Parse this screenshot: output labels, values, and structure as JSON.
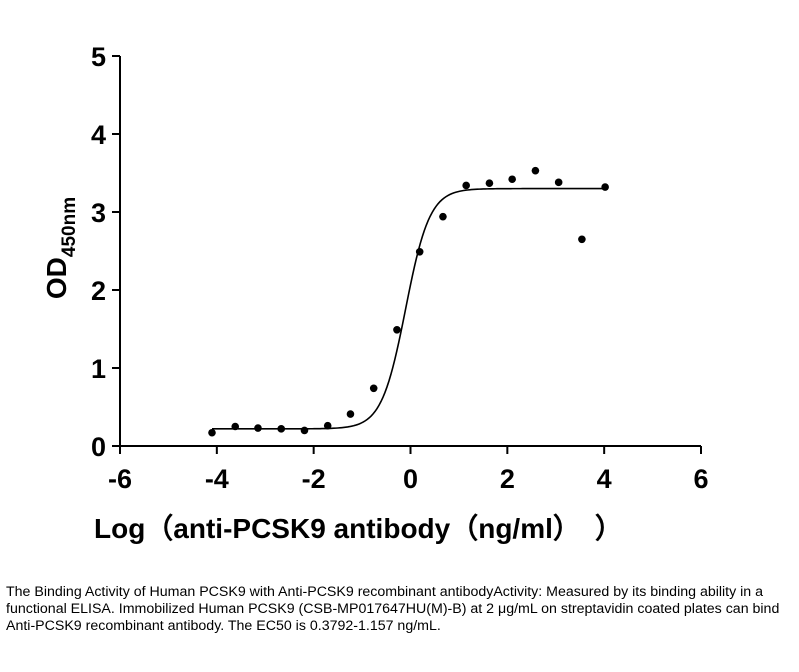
{
  "chart_data": {
    "type": "scatter",
    "title": "",
    "xlabel": "Log（anti-PCSK9 antibody（ng/ml）　）",
    "ylabel_main": "OD",
    "ylabel_sub": "450nm",
    "xlim": [
      -6,
      6
    ],
    "ylim": [
      0,
      5
    ],
    "xticks": [
      -6,
      -4,
      -2,
      0,
      2,
      4,
      6
    ],
    "xtick_labels": [
      "-6",
      "-4",
      "-2",
      "0",
      "2",
      "4",
      "6"
    ],
    "yticks": [
      0,
      1,
      2,
      3,
      4,
      5
    ],
    "ytick_labels": [
      "0",
      "1",
      "2",
      "3",
      "4",
      "5"
    ],
    "grid": false,
    "points": {
      "x": [
        -4.1,
        -3.62,
        -3.15,
        -2.67,
        -2.19,
        -1.71,
        -1.24,
        -0.76,
        -0.28,
        0.19,
        0.67,
        1.15,
        1.63,
        2.1,
        2.58,
        3.06,
        3.54,
        4.02
      ],
      "y": [
        0.17,
        0.25,
        0.23,
        0.22,
        0.2,
        0.26,
        0.41,
        0.74,
        1.49,
        2.49,
        2.94,
        3.34,
        3.37,
        3.42,
        3.53,
        3.38,
        2.65,
        3.32
      ]
    },
    "fit": {
      "model": "4PL",
      "bottom": 0.22,
      "top": 3.3,
      "log_ec50": -0.1,
      "hill_slope": 1.75,
      "x_range": [
        -4.1,
        4.02
      ]
    }
  },
  "caption": "The Binding Activity of Human PCSK9 with Anti-PCSK9 recombinant antibodyActivity: Measured by its binding ability in a functional ELISA. Immobilized Human PCSK9 (CSB-MP017647HU(M)-B) at 2 μg/mL on streptavidin coated plates can bind Anti-PCSK9 recombinant antibody. The EC50 is 0.3792-1.157 ng/mL."
}
